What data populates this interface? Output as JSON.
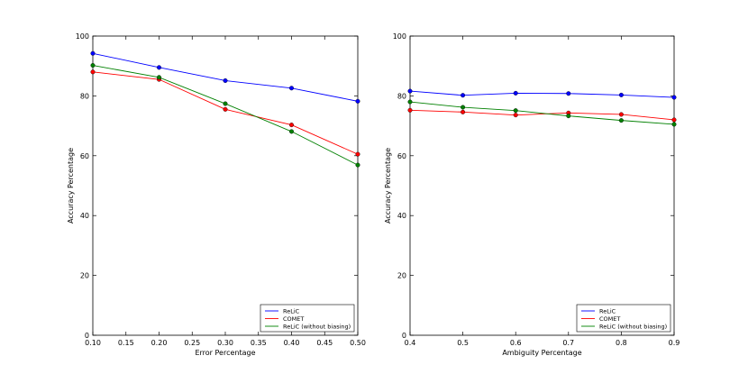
{
  "chart_data": [
    {
      "type": "line",
      "title": "",
      "xlabel": "Error Percentage",
      "ylabel": "Accuracy Percentage",
      "xlim": [
        0.1,
        0.5
      ],
      "ylim": [
        0,
        100
      ],
      "grid": false,
      "legend_position": "bottom-right",
      "x_ticks": [
        "0.10",
        "0.15",
        "0.20",
        "0.25",
        "0.30",
        "0.35",
        "0.40",
        "0.45",
        "0.50"
      ],
      "y_ticks": [
        "0",
        "20",
        "40",
        "60",
        "80",
        "100"
      ],
      "x": [
        0.1,
        0.2,
        0.3,
        0.4,
        0.5
      ],
      "series": [
        {
          "name": "ReLiC",
          "color": "#0000ff",
          "values": [
            94.2,
            89.5,
            85.1,
            82.6,
            78.2
          ]
        },
        {
          "name": "COMET",
          "color": "#ff0000",
          "values": [
            88.0,
            85.5,
            75.5,
            70.3,
            60.5
          ]
        },
        {
          "name": "ReLiC (without biasing)",
          "color": "#008000",
          "values": [
            90.2,
            86.2,
            77.4,
            68.1,
            56.9
          ]
        }
      ]
    },
    {
      "type": "line",
      "title": "",
      "xlabel": "Ambiguity Percentage",
      "ylabel": "Accuracy Percentage",
      "xlim": [
        0.4,
        0.9
      ],
      "ylim": [
        0,
        100
      ],
      "grid": false,
      "legend_position": "bottom-right",
      "x_ticks": [
        "0.4",
        "0.5",
        "0.6",
        "0.7",
        "0.8",
        "0.9"
      ],
      "y_ticks": [
        "0",
        "20",
        "40",
        "60",
        "80",
        "100"
      ],
      "x": [
        0.4,
        0.5,
        0.6,
        0.7,
        0.8,
        0.9
      ],
      "series": [
        {
          "name": "ReLiC",
          "color": "#0000ff",
          "values": [
            81.6,
            80.2,
            80.9,
            80.8,
            80.3,
            79.5
          ]
        },
        {
          "name": "COMET",
          "color": "#ff0000",
          "values": [
            75.2,
            74.6,
            73.6,
            74.3,
            73.8,
            72.0
          ]
        },
        {
          "name": "ReLiC (without biasing)",
          "color": "#008000",
          "values": [
            78.0,
            76.2,
            75.1,
            73.3,
            71.8,
            70.5
          ]
        }
      ]
    }
  ]
}
